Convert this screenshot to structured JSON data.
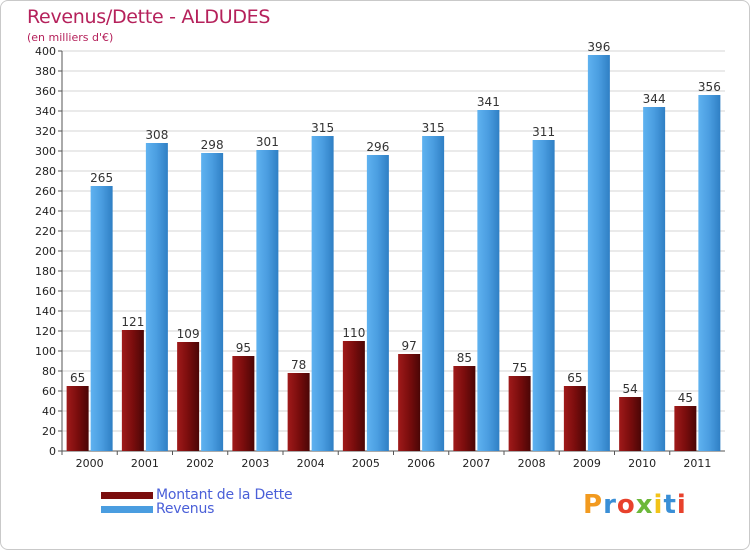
{
  "chart_data": {
    "type": "bar",
    "title": "Revenus/Dette - ALDUDES",
    "subtitle": "(en milliers d'€)",
    "xlabel": "",
    "ylabel": "",
    "ylim": [
      0,
      400
    ],
    "ytick_step": 20,
    "grid": true,
    "legend_position": "bottom-left",
    "categories": [
      "2000",
      "2001",
      "2002",
      "2003",
      "2004",
      "2005",
      "2006",
      "2007",
      "2008",
      "2009",
      "2010",
      "2011"
    ],
    "series": [
      {
        "name": "Montant de la Dette",
        "color": "#7a0d0d",
        "values": [
          65,
          121,
          109,
          95,
          78,
          110,
          97,
          85,
          75,
          65,
          54,
          45
        ]
      },
      {
        "name": "Revenus",
        "color": "#4a9de0",
        "values": [
          265,
          308,
          298,
          301,
          315,
          296,
          315,
          341,
          311,
          396,
          344,
          356
        ]
      }
    ]
  },
  "brand": {
    "letters": [
      "P",
      "r",
      "o",
      "x",
      "i",
      "t",
      "i"
    ],
    "colors": [
      "#f29a1f",
      "#3a8fd6",
      "#e8412c",
      "#6cb83a",
      "#f2c318",
      "#3a8fd6",
      "#e8412c"
    ]
  }
}
